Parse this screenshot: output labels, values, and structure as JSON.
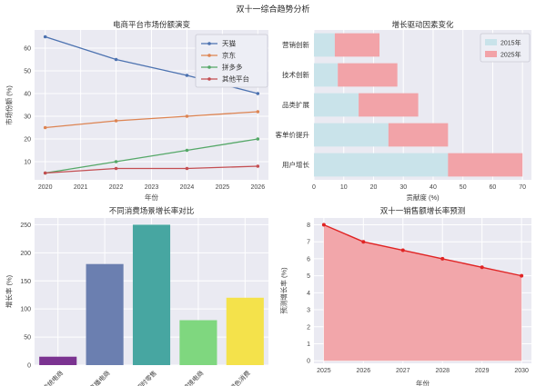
{
  "figure": {
    "title": "双十一综合趋势分析",
    "background": "#ffffff"
  },
  "style": {
    "plot_bg": "#eaeaf2",
    "grid_color": "#ffffff",
    "tick_color": "#444444",
    "title_color": "#2f2f2f",
    "legend_bg": "#edeef5",
    "legend_border": "#c9c9d4"
  },
  "chart_data": [
    {
      "type": "line",
      "title": "电商平台市场份额演变",
      "xlabel": "年份",
      "ylabel": "市场份额 (%)",
      "x": [
        2020,
        2022,
        2024,
        2026
      ],
      "xticks": [
        2020,
        2021,
        2022,
        2023,
        2024,
        2025,
        2026
      ],
      "yticks": [
        10,
        20,
        30,
        40,
        50,
        60
      ],
      "xlim": [
        2019.7,
        2026.3
      ],
      "ylim": [
        2,
        68
      ],
      "grid": true,
      "legend_position": "upper right",
      "series": [
        {
          "name": "天猫",
          "color": "#4C72B0",
          "values": [
            65,
            55,
            48,
            40
          ]
        },
        {
          "name": "京东",
          "color": "#DD8452",
          "values": [
            25,
            28,
            30,
            32
          ]
        },
        {
          "name": "拼多多",
          "color": "#55A868",
          "values": [
            5,
            10,
            15,
            20
          ]
        },
        {
          "name": "其他平台",
          "color": "#C44E52",
          "values": [
            5,
            7,
            7,
            8
          ]
        }
      ]
    },
    {
      "type": "barh_stacked",
      "title": "增长驱动因素变化",
      "xlabel": "贡献度 (%)",
      "categories": [
        "营销创新",
        "技术创新",
        "品类扩展",
        "客单价提升",
        "用户增长"
      ],
      "series": [
        {
          "name": "2015年",
          "color": "#c9e3ea",
          "values": [
            7,
            8,
            15,
            25,
            45
          ]
        },
        {
          "name": "2025年",
          "color": "#f2a3a8",
          "values": [
            15,
            20,
            20,
            20,
            25
          ]
        }
      ],
      "xticks": [
        0,
        10,
        20,
        30,
        40,
        50,
        60,
        70
      ],
      "xlim": [
        0,
        73
      ],
      "grid": true,
      "legend_position": "upper right"
    },
    {
      "type": "bar",
      "title": "不同消费场景增长率对比",
      "ylabel": "增长率 (%)",
      "categories": [
        "传统电商",
        "直播电商",
        "即时零售",
        "跨境电商",
        "绿色消费"
      ],
      "values": [
        15,
        180,
        250,
        80,
        120
      ],
      "bar_colors": [
        "#7b3391",
        "#6b7fb0",
        "#47a6a1",
        "#7fd77f",
        "#f4e24b"
      ],
      "yticks": [
        0,
        50,
        100,
        150,
        200,
        250
      ],
      "ylim": [
        0,
        262
      ],
      "grid": true,
      "xtick_rotation": 45
    },
    {
      "type": "area_line",
      "title": "双十一销售额增长率预测",
      "xlabel": "年份",
      "ylabel": "预测增长率 (%)",
      "x": [
        2025,
        2026,
        2027,
        2028,
        2029,
        2030
      ],
      "values": [
        8.0,
        7.0,
        6.5,
        6.0,
        5.5,
        5.0
      ],
      "line_color": "#e02424",
      "fill_color": "#f2a6aa",
      "xticks": [
        2025,
        2026,
        2027,
        2028,
        2029,
        2030
      ],
      "yticks": [
        0,
        1,
        2,
        3,
        4,
        5,
        6,
        7,
        8
      ],
      "xlim": [
        2024.75,
        2030.25
      ],
      "ylim": [
        -0.15,
        8.4
      ],
      "grid": true
    }
  ]
}
